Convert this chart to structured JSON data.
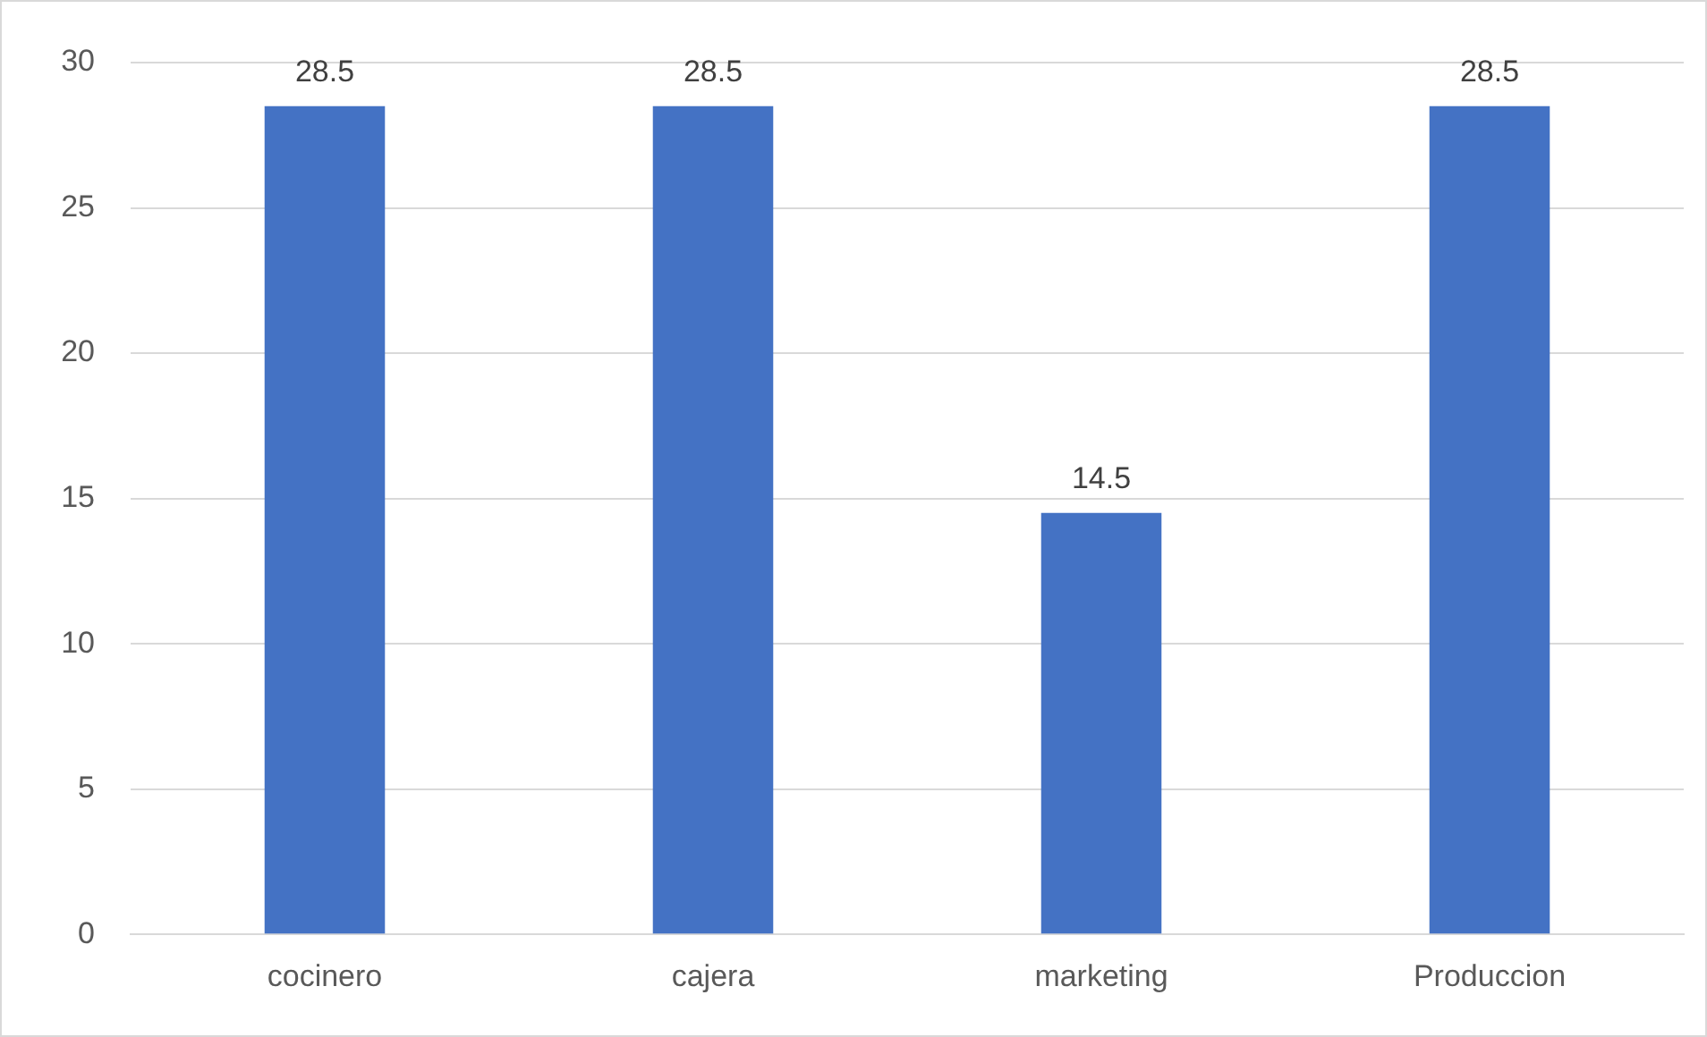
{
  "chart_data": {
    "type": "bar",
    "categories": [
      "cocinero",
      "cajera",
      "marketing",
      "Produccion"
    ],
    "values": [
      28.5,
      28.5,
      14.5,
      28.5
    ],
    "color": "#4472c4",
    "ylim": [
      0,
      30
    ],
    "yticks": [
      0,
      5,
      10,
      15,
      20,
      25,
      30
    ],
    "grid": "y",
    "data_labels": true,
    "legend": false
  }
}
